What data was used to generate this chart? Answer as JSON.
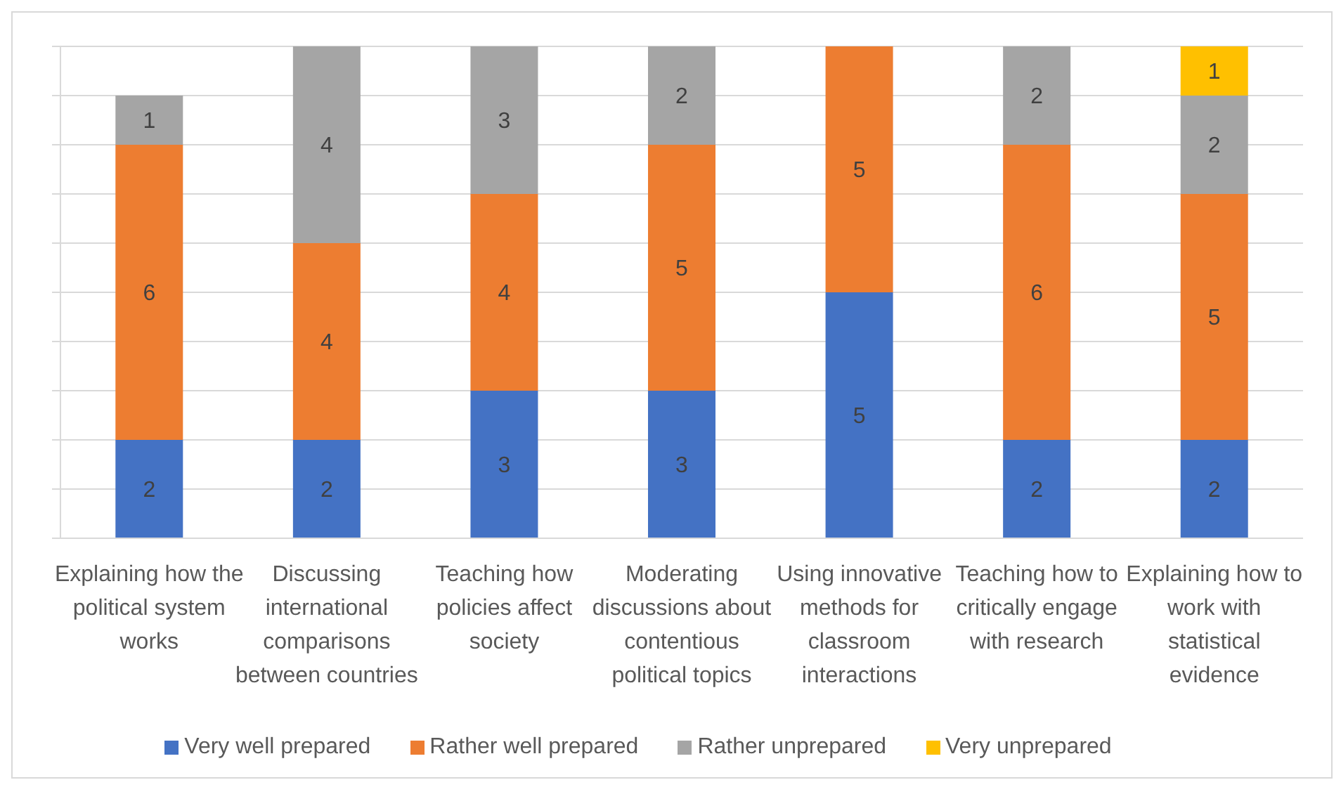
{
  "chart_data": {
    "type": "bar",
    "stacked": true,
    "data_labels": true,
    "grid": "y",
    "legend": "bottom",
    "categories": [
      "Explaining how the political system works",
      "Discussing international comparisons between countries",
      "Teaching how policies affect society",
      "Moderating discussions about contentious political topics",
      "Using innovative methods for classroom interactions",
      "Teaching how to critically engage with research",
      "Explaining how to work with statistical evidence"
    ],
    "series": [
      {
        "name": "Very well prepared",
        "color": "#4472c4",
        "values": [
          2,
          2,
          3,
          3,
          5,
          2,
          2
        ]
      },
      {
        "name": "Rather well prepared",
        "color": "#ed7d31",
        "values": [
          6,
          4,
          4,
          5,
          5,
          6,
          5
        ]
      },
      {
        "name": "Rather unprepared",
        "color": "#a5a5a5",
        "values": [
          1,
          4,
          3,
          2,
          null,
          2,
          2
        ]
      },
      {
        "name": "Very unprepared",
        "color": "#ffc000",
        "values": [
          null,
          null,
          null,
          null,
          null,
          null,
          1
        ]
      }
    ]
  }
}
